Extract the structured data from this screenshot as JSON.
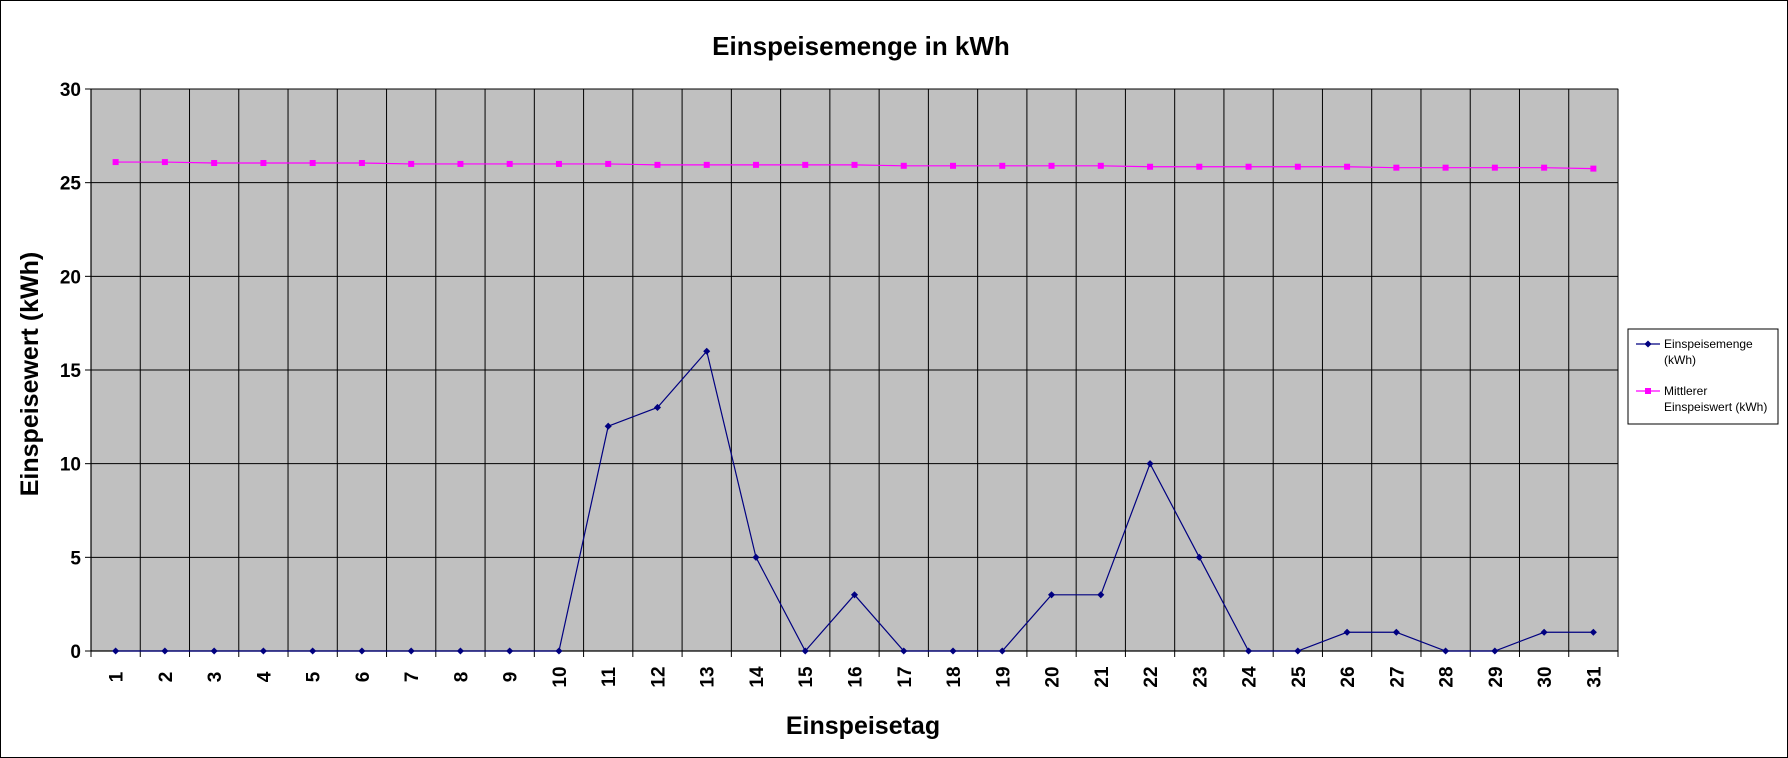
{
  "chart_data": {
    "type": "line",
    "title": "Einspeisemenge in kWh",
    "xlabel": "Einspeisetag",
    "ylabel": "Einspeisewert  (kWh)",
    "ylim": [
      0,
      30
    ],
    "yticks": [
      "0",
      "5",
      "10",
      "15",
      "20",
      "25",
      "30"
    ],
    "ytick_values": [
      0,
      5,
      10,
      15,
      20,
      25,
      30
    ],
    "categories": [
      "1",
      "2",
      "3",
      "4",
      "5",
      "6",
      "7",
      "8",
      "9",
      "10",
      "11",
      "12",
      "13",
      "14",
      "15",
      "16",
      "17",
      "18",
      "19",
      "20",
      "21",
      "22",
      "23",
      "24",
      "25",
      "26",
      "27",
      "28",
      "29",
      "30",
      "31"
    ],
    "grid": true,
    "legend_position": "right",
    "plot_background": "#c0c0c0",
    "series": [
      {
        "name": "Einspeisemenge (kWh)",
        "legend_lines": [
          "Einspeisemenge",
          "(kWh)"
        ],
        "color": "#000080",
        "marker": "diamond",
        "values": [
          0,
          0,
          0,
          0,
          0,
          0,
          0,
          0,
          0,
          0,
          12,
          13,
          16,
          5,
          0,
          3,
          0,
          0,
          0,
          3,
          3,
          10,
          5,
          0,
          0,
          1,
          1,
          0,
          0,
          1,
          1
        ]
      },
      {
        "name": "Mittlerer Einspeiswert (kWh)",
        "legend_lines": [
          "Mittlerer",
          "Einspeiswert (kWh)"
        ],
        "color": "#ff00ff",
        "marker": "square",
        "values": [
          26.1,
          26.1,
          26.05,
          26.05,
          26.05,
          26.05,
          26.0,
          26.0,
          26.0,
          26.0,
          26.0,
          25.95,
          25.95,
          25.95,
          25.95,
          25.95,
          25.9,
          25.9,
          25.9,
          25.9,
          25.9,
          25.85,
          25.85,
          25.85,
          25.85,
          25.85,
          25.8,
          25.8,
          25.8,
          25.8,
          25.75
        ]
      }
    ]
  }
}
